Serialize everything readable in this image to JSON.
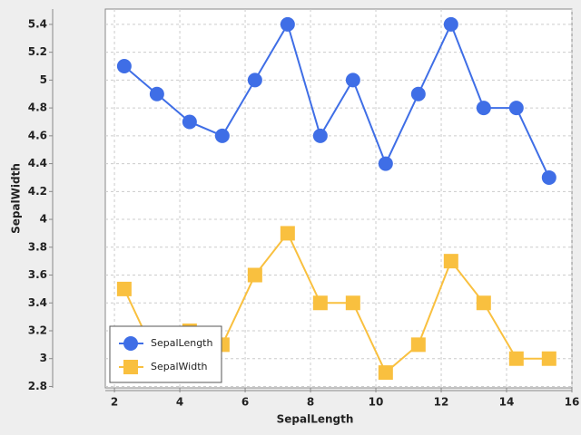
{
  "chart_data": {
    "type": "line",
    "xlabel": "SepalLength",
    "ylabel": "SepalWidth",
    "x": [
      2.3,
      3.3,
      4.3,
      5.3,
      6.3,
      7.3,
      8.3,
      9.3,
      10.3,
      11.3,
      12.3,
      13.3,
      14.3,
      15.3
    ],
    "series": [
      {
        "name": "SepalLength",
        "color": "#3f6ee6",
        "marker": "circle",
        "values": [
          5.1,
          4.9,
          4.7,
          4.6,
          5.0,
          5.4,
          4.6,
          5.0,
          4.4,
          4.9,
          5.4,
          4.8,
          4.8,
          4.3
        ]
      },
      {
        "name": "SepalWidth",
        "color": "#f9c03f",
        "marker": "square",
        "values": [
          3.5,
          3.0,
          3.2,
          3.1,
          3.6,
          3.9,
          3.4,
          3.4,
          2.9,
          3.1,
          3.7,
          3.4,
          3.0,
          3.0
        ]
      }
    ],
    "xlim": [
      1.72,
      16
    ],
    "xticks": [
      2,
      4,
      6,
      8,
      10,
      12,
      14,
      16
    ],
    "ylim": [
      2.79,
      5.51
    ],
    "yticks": [
      2.8,
      3,
      3.2,
      3.4,
      3.6,
      3.8,
      4,
      4.2,
      4.4,
      4.6,
      4.8,
      5,
      5.2,
      5.4
    ],
    "grid": true,
    "legend": "lower left"
  }
}
